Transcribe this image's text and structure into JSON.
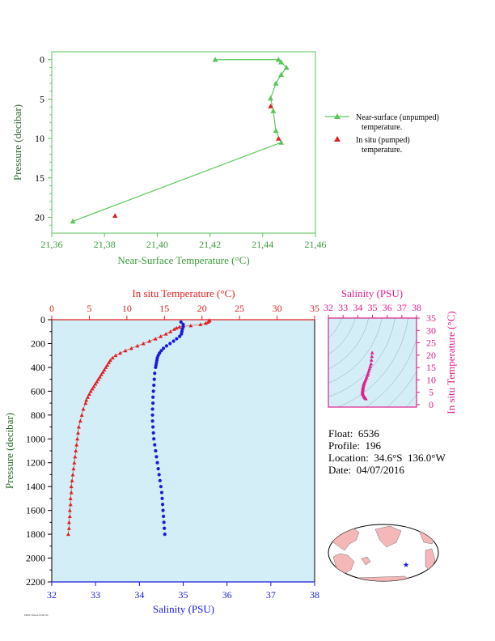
{
  "chart_data": [
    {
      "type": "line",
      "xlabel": "Near-Surface Temperature (°C)",
      "ylabel": "Pressure (decibar)",
      "xlim": [
        21.36,
        21.46
      ],
      "ylim": [
        22,
        -1
      ],
      "x_ticks": [
        "21,36",
        "21,38",
        "21,40",
        "21,42",
        "21,44",
        "21,46"
      ],
      "y_ticks": [
        "0",
        "5",
        "10",
        "15",
        "20"
      ],
      "legend": {
        "position": "right",
        "entries": [
          {
            "line1": "Near-surface (unpumped)",
            "line2": "temperature.",
            "color": "#5cc65c"
          },
          {
            "line1": "In situ (pumped)",
            "line2": "temperature.",
            "color": "#e02020"
          }
        ]
      },
      "series": [
        {
          "name": "Near-surface (unpumped) temperature.",
          "color": "#5cc65c",
          "x": [
            21.422,
            21.446,
            21.447,
            21.449,
            21.447,
            21.445,
            21.443,
            21.444,
            21.445,
            21.447,
            21.368
          ],
          "y": [
            0.0,
            0.0,
            0.3,
            1.0,
            1.9,
            3.0,
            4.9,
            6.5,
            9.0,
            10.5,
            20.5
          ]
        },
        {
          "name": "In situ (pumped) temperature.",
          "color": "#e02020",
          "x": [
            21.443,
            21.446,
            21.384
          ],
          "y": [
            5.9,
            10.0,
            19.8
          ]
        }
      ]
    },
    {
      "type": "line",
      "ylabel": "Pressure (decibar)",
      "x_top_label": "In situ Temperature (°C)",
      "x_bottom_label": "Salinity (PSU)",
      "temp_lim": [
        0,
        35
      ],
      "sal_lim": [
        32,
        38
      ],
      "ylim": [
        2200,
        0
      ],
      "temp_ticks": [
        "0",
        "5",
        "10",
        "15",
        "20",
        "25",
        "30",
        "35"
      ],
      "sal_ticks": [
        "32",
        "33",
        "34",
        "35",
        "36",
        "37",
        "38"
      ],
      "y_ticks": [
        "0",
        "200",
        "400",
        "600",
        "800",
        "1000",
        "1200",
        "1400",
        "1600",
        "1800",
        "2000",
        "2200"
      ],
      "series": [
        {
          "name": "In situ Temperature",
          "color": "#e02020",
          "pressure": [
            4,
            10,
            20,
            30,
            40,
            50,
            60,
            70,
            80,
            100,
            120,
            140,
            160,
            180,
            200,
            220,
            240,
            260,
            280,
            300,
            320,
            340,
            360,
            380,
            400,
            420,
            440,
            460,
            480,
            500,
            520,
            540,
            560,
            580,
            600,
            625,
            650,
            675,
            700,
            750,
            800,
            850,
            900,
            950,
            1000,
            1050,
            1100,
            1150,
            1200,
            1250,
            1300,
            1350,
            1400,
            1450,
            1500,
            1550,
            1600,
            1650,
            1700,
            1750,
            1800
          ],
          "values": [
            21.0,
            21.0,
            20.8,
            20.5,
            19.8,
            18.5,
            17.0,
            16.6,
            16.3,
            15.8,
            15.2,
            14.5,
            13.8,
            13.0,
            12.2,
            11.4,
            10.6,
            9.8,
            9.1,
            8.5,
            8.1,
            7.8,
            7.6,
            7.4,
            7.2,
            7.0,
            6.8,
            6.6,
            6.4,
            6.2,
            6.0,
            5.8,
            5.6,
            5.4,
            5.2,
            5.0,
            4.8,
            4.6,
            4.5,
            4.2,
            4.0,
            3.8,
            3.6,
            3.5,
            3.4,
            3.3,
            3.2,
            3.1,
            3.0,
            2.9,
            2.8,
            2.7,
            2.6,
            2.6,
            2.5,
            2.5,
            2.4,
            2.4,
            2.3,
            2.3,
            2.2
          ]
        },
        {
          "name": "Salinity",
          "color": "#1a1adc",
          "pressure": [
            20,
            40,
            60,
            80,
            100,
            120,
            140,
            160,
            180,
            200,
            220,
            240,
            260,
            280,
            300,
            320,
            340,
            360,
            380,
            400,
            450,
            500,
            550,
            600,
            650,
            700,
            750,
            800,
            850,
            900,
            950,
            1000,
            1050,
            1100,
            1150,
            1200,
            1250,
            1300,
            1350,
            1400,
            1450,
            1500,
            1550,
            1600,
            1650,
            1700,
            1750,
            1800
          ],
          "values": [
            34.95,
            35.0,
            35.0,
            34.98,
            34.97,
            34.96,
            34.92,
            34.85,
            34.78,
            34.7,
            34.62,
            34.55,
            34.5,
            34.46,
            34.43,
            34.41,
            34.4,
            34.39,
            34.38,
            34.37,
            34.35,
            34.34,
            34.33,
            34.32,
            34.31,
            34.31,
            34.3,
            34.3,
            34.3,
            34.31,
            34.32,
            34.33,
            34.35,
            34.37,
            34.39,
            34.41,
            34.43,
            34.45,
            34.47,
            34.49,
            34.51,
            34.52,
            34.53,
            34.54,
            34.55,
            34.56,
            34.57,
            34.58
          ]
        }
      ]
    },
    {
      "type": "scatter",
      "xlabel": "Salinity (PSU)",
      "ylabel": "In situ Temperature (°C)",
      "xlim": [
        32,
        38
      ],
      "ylim": [
        -1,
        35
      ],
      "x_ticks": [
        "32",
        "33",
        "34",
        "35",
        "36",
        "37",
        "38"
      ],
      "y_ticks": [
        "0",
        "5",
        "10",
        "15",
        "20",
        "25",
        "30",
        "35"
      ],
      "series": [
        {
          "name": "T-S",
          "color": "#e0208a",
          "x": [
            34.98,
            34.96,
            34.93,
            34.9,
            34.85,
            34.8,
            34.75,
            34.7,
            34.65,
            34.6,
            34.55,
            34.5,
            34.45,
            34.42,
            34.4,
            34.38,
            34.36,
            34.35,
            34.34,
            34.33,
            34.32,
            34.33,
            34.35,
            34.38,
            34.42,
            34.46,
            34.5,
            34.55
          ],
          "y": [
            21.0,
            19.5,
            18.0,
            16.5,
            15.5,
            14.5,
            13.5,
            12.5,
            11.8,
            11.0,
            10.3,
            9.6,
            9.0,
            8.5,
            8.0,
            7.5,
            7.0,
            6.5,
            6.0,
            5.5,
            5.0,
            4.6,
            4.2,
            3.8,
            3.4,
            3.0,
            2.7,
            2.4
          ]
        }
      ]
    }
  ],
  "float_info": {
    "float": "Float:  6536",
    "profile": "Profile:  196",
    "location": "Location:  34.6°S  136.0°W",
    "date": "Date:  04/07/2016"
  },
  "map": {
    "marker_color": "#1a1adc",
    "land_color": "#f4b8b8",
    "ocean_color": "#ffffff"
  },
  "footer": {
    "tiny_text": "PMEL/NOAA  6536/196"
  }
}
